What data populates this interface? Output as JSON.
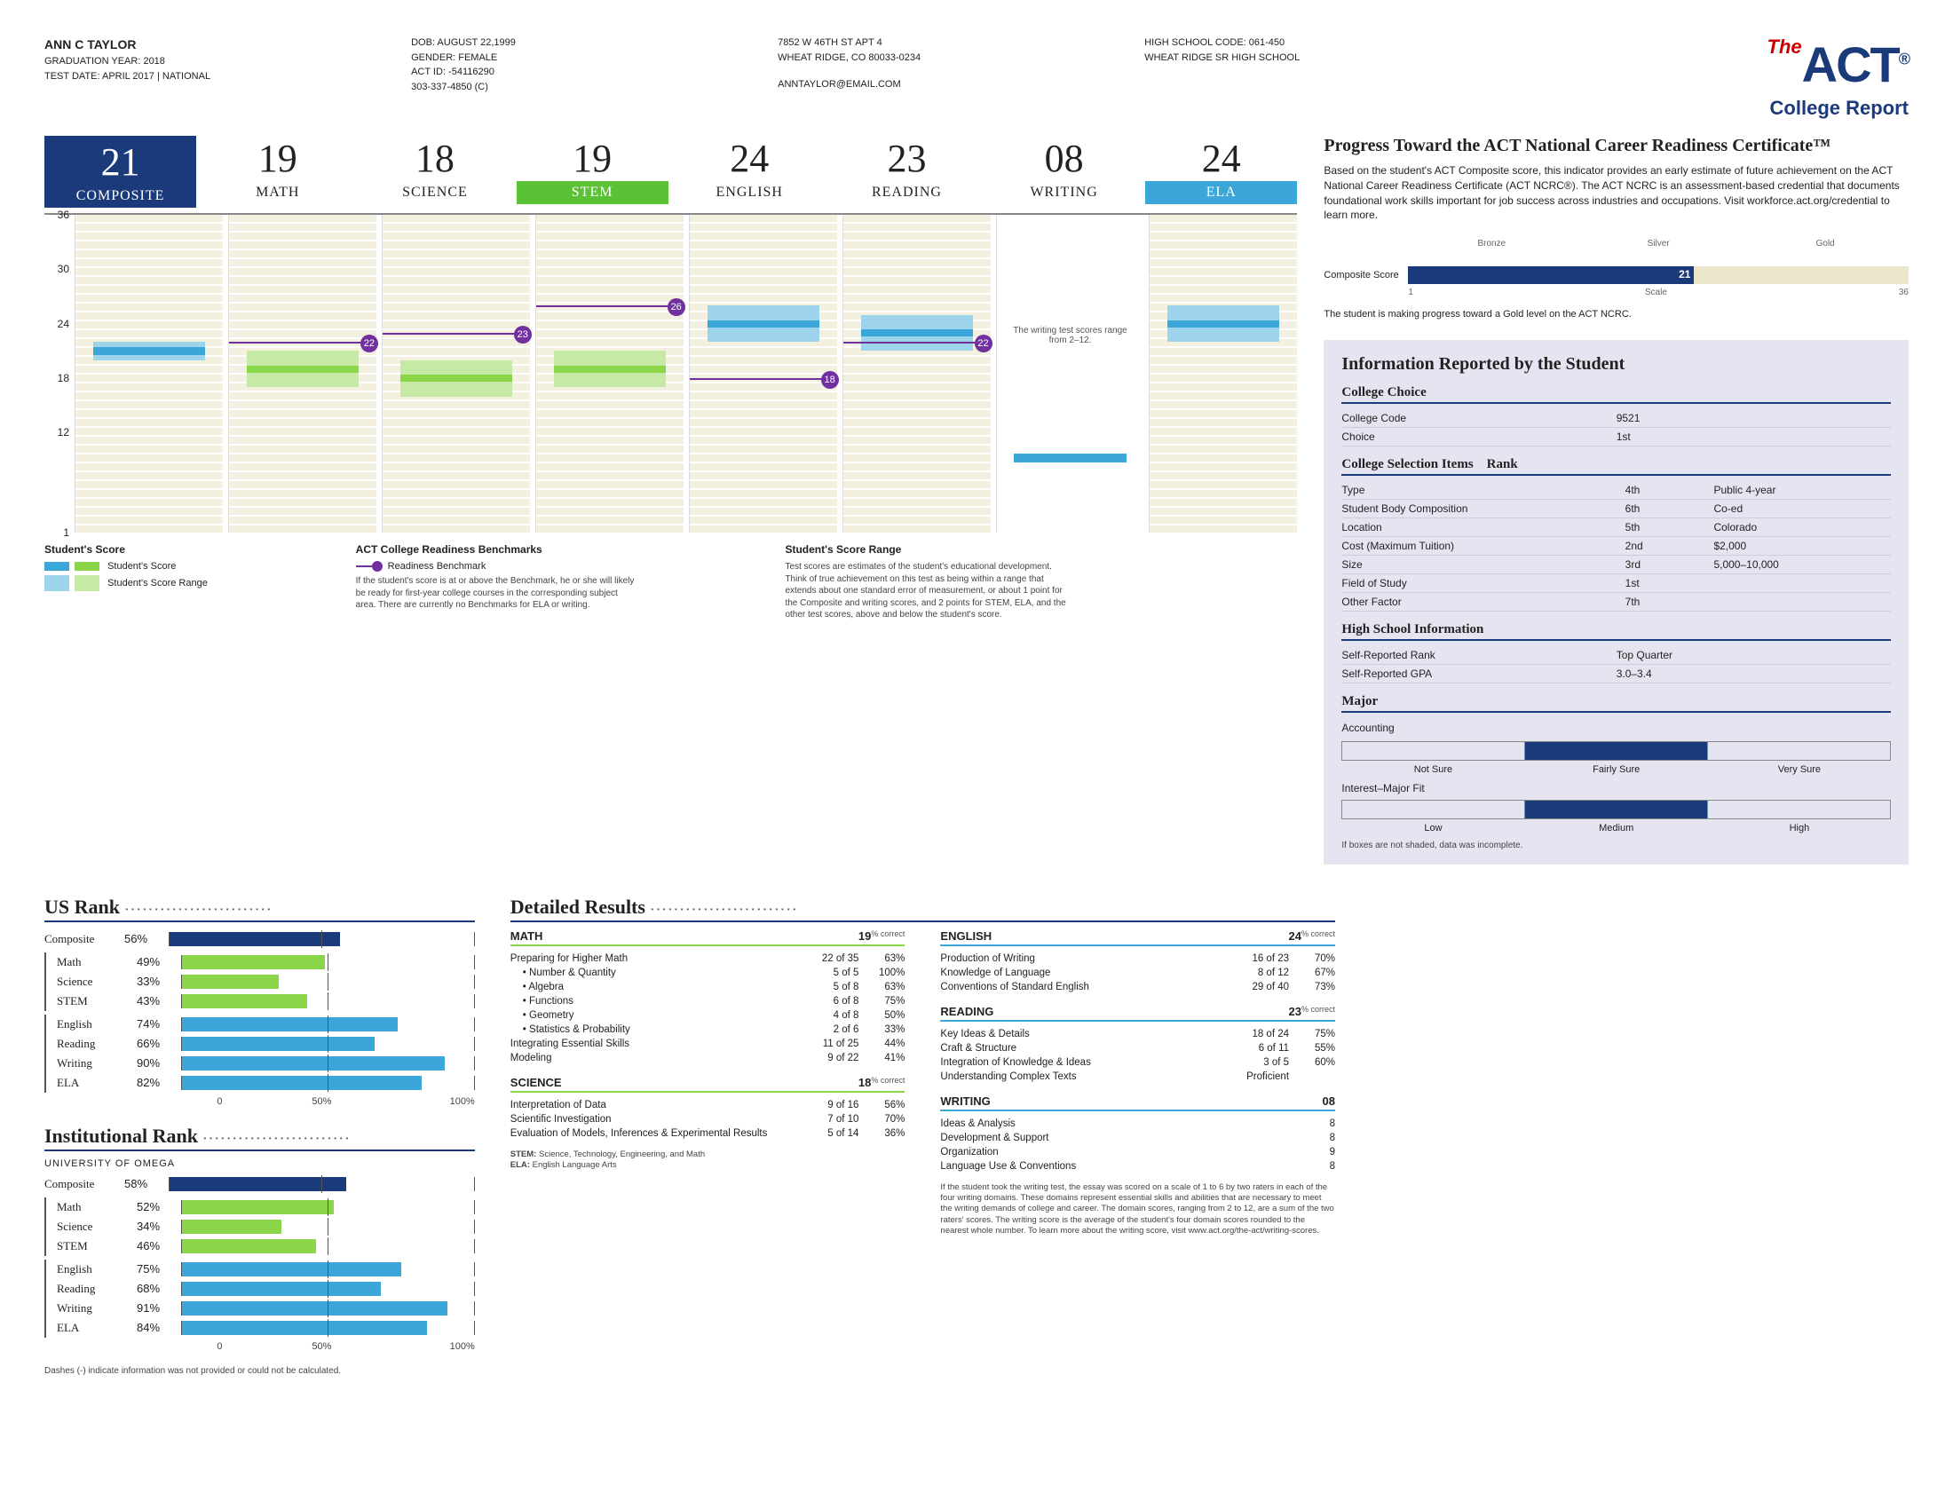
{
  "header": {
    "name": "ANN C TAYLOR",
    "grad": "GRADUATION YEAR: 2018",
    "test_date": "TEST DATE: APRIL 2017 | NATIONAL",
    "dob": "DOB: AUGUST 22,1999",
    "gender": "GENDER: FEMALE",
    "act_id": "ACT ID: -54116290",
    "phone": "303-337-4850 (C)",
    "addr1": "7852 W 46TH ST APT 4",
    "addr2": "WHEAT RIDGE, CO 80033-0234",
    "email": "ANNTAYLOR@EMAIL.COM",
    "hs_code": "HIGH SCHOOL CODE: 061-450",
    "hs_name": "WHEAT RIDGE SR HIGH SCHOOL",
    "report_title": "College Report"
  },
  "scores": {
    "yaxis": [
      36,
      30,
      24,
      18,
      12,
      1
    ],
    "ymin": 1,
    "ymax": 36,
    "items": [
      {
        "label": "COMPOSITE",
        "score": 21,
        "kind": "composite",
        "range_lo": 20,
        "range_hi": 22,
        "color": "#3ba7d9",
        "range_color": "#9dd4ec"
      },
      {
        "label": "MATH",
        "score": 19,
        "kind": "plain",
        "range_lo": 17,
        "range_hi": 21,
        "color": "#8bd648",
        "range_color": "#c6eaa6",
        "benchmark": 22
      },
      {
        "label": "SCIENCE",
        "score": 18,
        "kind": "plain",
        "range_lo": 16,
        "range_hi": 20,
        "color": "#8bd648",
        "range_color": "#c6eaa6",
        "benchmark": 23
      },
      {
        "label": "STEM",
        "score": 19,
        "kind": "stem",
        "range_lo": 17,
        "range_hi": 21,
        "color": "#8bd648",
        "range_color": "#c6eaa6",
        "benchmark": 26
      },
      {
        "label": "ENGLISH",
        "score": 24,
        "kind": "plain",
        "range_lo": 22,
        "range_hi": 26,
        "color": "#3ba7d9",
        "range_color": "#9dd4ec",
        "benchmark": 18
      },
      {
        "label": "READING",
        "score": 23,
        "kind": "plain",
        "range_lo": 21,
        "range_hi": 25,
        "color": "#3ba7d9",
        "range_color": "#9dd4ec",
        "benchmark": 22
      },
      {
        "label": "WRITING",
        "score": 8,
        "kind": "writing",
        "range_lo": 7.5,
        "range_hi": 8.5,
        "color": "#3ba7d9",
        "range_color": "#9dd4ec",
        "display": "08",
        "note": "The writing test scores range from 2–12."
      },
      {
        "label": "ELA",
        "score": 24,
        "kind": "ela",
        "range_lo": 22,
        "range_hi": 26,
        "color": "#3ba7d9",
        "range_color": "#9dd4ec"
      }
    ]
  },
  "legend": {
    "h1": "Student's Score",
    "l1a": "Student's Score",
    "l1b": "Student's Score Range",
    "h2": "ACT College Readiness Benchmarks",
    "l2": "Readiness Benchmark",
    "t2": "If the student's score is at or above the Benchmark, he or she will likely be ready for first-year college courses in the corresponding subject area. There are currently no Benchmarks for ELA or writing.",
    "h3": "Student's Score Range",
    "t3": "Test scores are estimates of the student's educational development. Think of true achievement on this test as being within a range that extends about one standard error of measurement, or about 1 point for the Composite and writing scores, and 2 points for STEM, ELA, and the other test scores, above and below the student's score."
  },
  "us_rank": {
    "title": "US Rank",
    "groups": [
      [
        {
          "label": "Composite",
          "pct": 56,
          "color": "#1b3a7a"
        }
      ],
      [
        {
          "label": "Math",
          "pct": 49,
          "color": "#8bd648"
        },
        {
          "label": "Science",
          "pct": 33,
          "color": "#8bd648"
        },
        {
          "label": "STEM",
          "pct": 43,
          "color": "#8bd648"
        }
      ],
      [
        {
          "label": "English",
          "pct": 74,
          "color": "#3ba7d9"
        },
        {
          "label": "Reading",
          "pct": 66,
          "color": "#3ba7d9"
        },
        {
          "label": "Writing",
          "pct": 90,
          "color": "#3ba7d9"
        },
        {
          "label": "ELA",
          "pct": 82,
          "color": "#3ba7d9"
        }
      ]
    ]
  },
  "inst_rank": {
    "title": "Institutional Rank",
    "sub": "UNIVERSITY OF OMEGA",
    "groups": [
      [
        {
          "label": "Composite",
          "pct": 58,
          "color": "#1b3a7a"
        }
      ],
      [
        {
          "label": "Math",
          "pct": 52,
          "color": "#8bd648"
        },
        {
          "label": "Science",
          "pct": 34,
          "color": "#8bd648"
        },
        {
          "label": "STEM",
          "pct": 46,
          "color": "#8bd648"
        }
      ],
      [
        {
          "label": "English",
          "pct": 75,
          "color": "#3ba7d9"
        },
        {
          "label": "Reading",
          "pct": 68,
          "color": "#3ba7d9"
        },
        {
          "label": "Writing",
          "pct": 91,
          "color": "#3ba7d9"
        },
        {
          "label": "ELA",
          "pct": 84,
          "color": "#3ba7d9"
        }
      ]
    ],
    "foot": "Dashes (-) indicate information was not provided or could not be calculated."
  },
  "detailed": {
    "title": "Detailed Results",
    "pc_label": "% correct",
    "math": {
      "name": "MATH",
      "score": 19,
      "color": "#8bd648",
      "rows": [
        {
          "name": "Preparing for Higher Math",
          "of": "22 of 35",
          "pct": "63%"
        },
        {
          "name": "• Number & Quantity",
          "of": "5 of 5",
          "pct": "100%",
          "indent": true
        },
        {
          "name": "• Algebra",
          "of": "5 of 8",
          "pct": "63%",
          "indent": true
        },
        {
          "name": "• Functions",
          "of": "6 of 8",
          "pct": "75%",
          "indent": true
        },
        {
          "name": "• Geometry",
          "of": "4 of 8",
          "pct": "50%",
          "indent": true
        },
        {
          "name": "• Statistics & Probability",
          "of": "2 of 6",
          "pct": "33%",
          "indent": true
        },
        {
          "name": "Integrating Essential Skills",
          "of": "11 of 25",
          "pct": "44%"
        },
        {
          "name": "Modeling",
          "of": "9 of 22",
          "pct": "41%"
        }
      ]
    },
    "science": {
      "name": "SCIENCE",
      "score": 18,
      "color": "#8bd648",
      "rows": [
        {
          "name": "Interpretation of Data",
          "of": "9 of 16",
          "pct": "56%"
        },
        {
          "name": "Scientific Investigation",
          "of": "7 of 10",
          "pct": "70%"
        },
        {
          "name": "Evaluation of Models, Inferences & Experimental Results",
          "of": "5 of 14",
          "pct": "36%"
        }
      ]
    },
    "english": {
      "name": "ENGLISH",
      "score": 24,
      "color": "#3ba7d9",
      "rows": [
        {
          "name": "Production of Writing",
          "of": "16 of 23",
          "pct": "70%"
        },
        {
          "name": "Knowledge of Language",
          "of": "8 of 12",
          "pct": "67%"
        },
        {
          "name": "Conventions of Standard English",
          "of": "29 of 40",
          "pct": "73%"
        }
      ]
    },
    "reading": {
      "name": "READING",
      "score": 23,
      "color": "#3ba7d9",
      "rows": [
        {
          "name": "Key Ideas & Details",
          "of": "18 of 24",
          "pct": "75%"
        },
        {
          "name": "Craft & Structure",
          "of": "6 of 11",
          "pct": "55%"
        },
        {
          "name": "Integration of Knowledge & Ideas",
          "of": "3 of 5",
          "pct": "60%"
        },
        {
          "name": "Understanding Complex Texts",
          "of": "Proficient",
          "pct": ""
        }
      ]
    },
    "writing": {
      "name": "WRITING",
      "score": "08",
      "color": "#3ba7d9",
      "rows": [
        {
          "name": "Ideas & Analysis",
          "of": "",
          "pct": "8"
        },
        {
          "name": "Development & Support",
          "of": "",
          "pct": "8"
        },
        {
          "name": "Organization",
          "of": "",
          "pct": "9"
        },
        {
          "name": "Language Use & Conventions",
          "of": "",
          "pct": "8"
        }
      ]
    },
    "stem_note": "STEM: Science, Technology, Engineering, and Math",
    "ela_note": "ELA: English Language Arts",
    "writing_note": "If the student took the writing test, the essay was scored on a scale of 1 to 6 by two raters in each of the four writing domains. These domains represent essential skills and abilities that are necessary to meet the writing demands of college and career. The domain scores, ranging from 2 to 12, are a sum of the two raters' scores. The writing score is the average of the student's four domain scores rounded to the nearest whole number. To learn more about the writing score, visit www.act.org/the-act/writing-scores."
  },
  "progress": {
    "title": "Progress Toward the ACT National Career Readiness Certificate™",
    "body": "Based on the student's ACT Composite score, this indicator provides an early estimate of future achievement on the ACT National Career Readiness Certificate (ACT NCRC®). The ACT NCRC is an assessment-based credential that documents foundational work skills important for job success across industries and occupations. Visit workforce.act.org/credential to learn more.",
    "label": "Composite Score",
    "score": 21,
    "min": 1,
    "max": 36,
    "levels": [
      "Bronze",
      "Silver",
      "Gold"
    ],
    "scale_label": "Scale",
    "summary": "The student is making progress toward a Gold level on the ACT NCRC."
  },
  "student": {
    "title": "Information Reported by the Student",
    "choice_h": "College Choice",
    "choice": [
      [
        "College Code",
        "9521"
      ],
      [
        "Choice",
        "1st"
      ]
    ],
    "select_h": "College Selection Items",
    "rank_h": "Rank",
    "select": [
      [
        "Type",
        "4th",
        "Public 4-year"
      ],
      [
        "Student Body Composition",
        "6th",
        "Co-ed"
      ],
      [
        "Location",
        "5th",
        "Colorado"
      ],
      [
        "Cost (Maximum Tuition)",
        "2nd",
        "$2,000"
      ],
      [
        "Size",
        "3rd",
        "5,000–10,000"
      ],
      [
        "Field of Study",
        "1st",
        ""
      ],
      [
        "Other Factor",
        "7th",
        ""
      ]
    ],
    "hs_h": "High School Information",
    "hs": [
      [
        "Self-Reported Rank",
        "Top Quarter"
      ],
      [
        "Self-Reported GPA",
        "3.0–3.4"
      ]
    ],
    "major_h": "Major",
    "major_name": "Accounting",
    "major_levels": [
      "Not Sure",
      "Fairly Sure",
      "Very Sure"
    ],
    "major_fill": 1,
    "fit_h": "Interest–Major Fit",
    "fit_levels": [
      "Low",
      "Medium",
      "High"
    ],
    "fit_fill": 1,
    "foot": "If boxes are not shaded, data was incomplete."
  }
}
